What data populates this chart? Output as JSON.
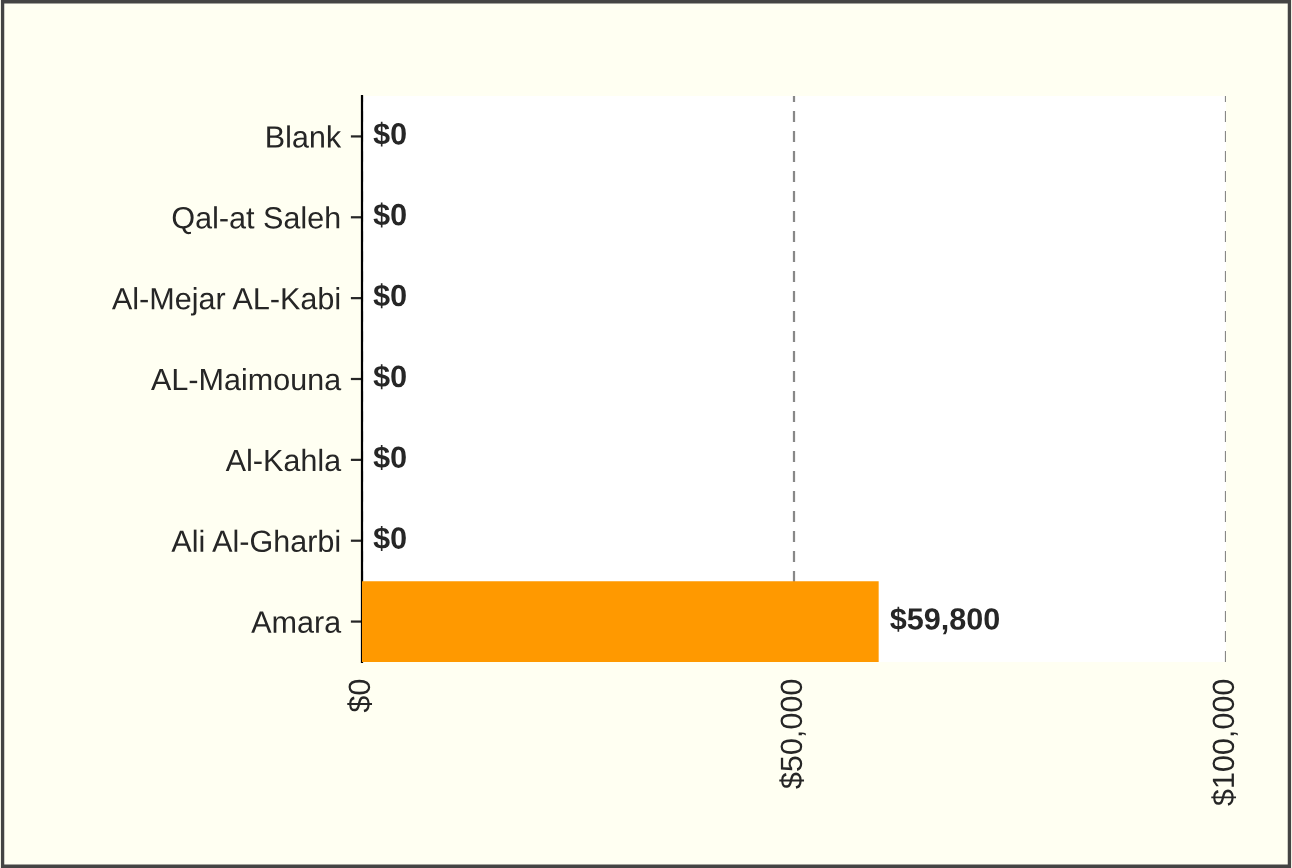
{
  "chart_data": {
    "type": "bar",
    "orientation": "horizontal",
    "categories": [
      "Blank",
      "Qal-at Saleh",
      "Al-Mejar AL-Kabi",
      "AL-Maimouna",
      "Al-Kahla",
      "Ali Al-Gharbi",
      "Amara"
    ],
    "values": [
      0,
      0,
      0,
      0,
      0,
      0,
      59800
    ],
    "color": "#ff9900",
    "value_labels": [
      "$0",
      "$0",
      "$0",
      "$0",
      "$0",
      "$0",
      "$59,800"
    ],
    "xlim": [
      0,
      100000
    ],
    "xticks": [
      {
        "value": 0,
        "label": "$0"
      },
      {
        "value": 50000,
        "label": "$50,000"
      },
      {
        "value": 100000,
        "label": "$100,000"
      }
    ],
    "grid": "x",
    "legend": false
  }
}
